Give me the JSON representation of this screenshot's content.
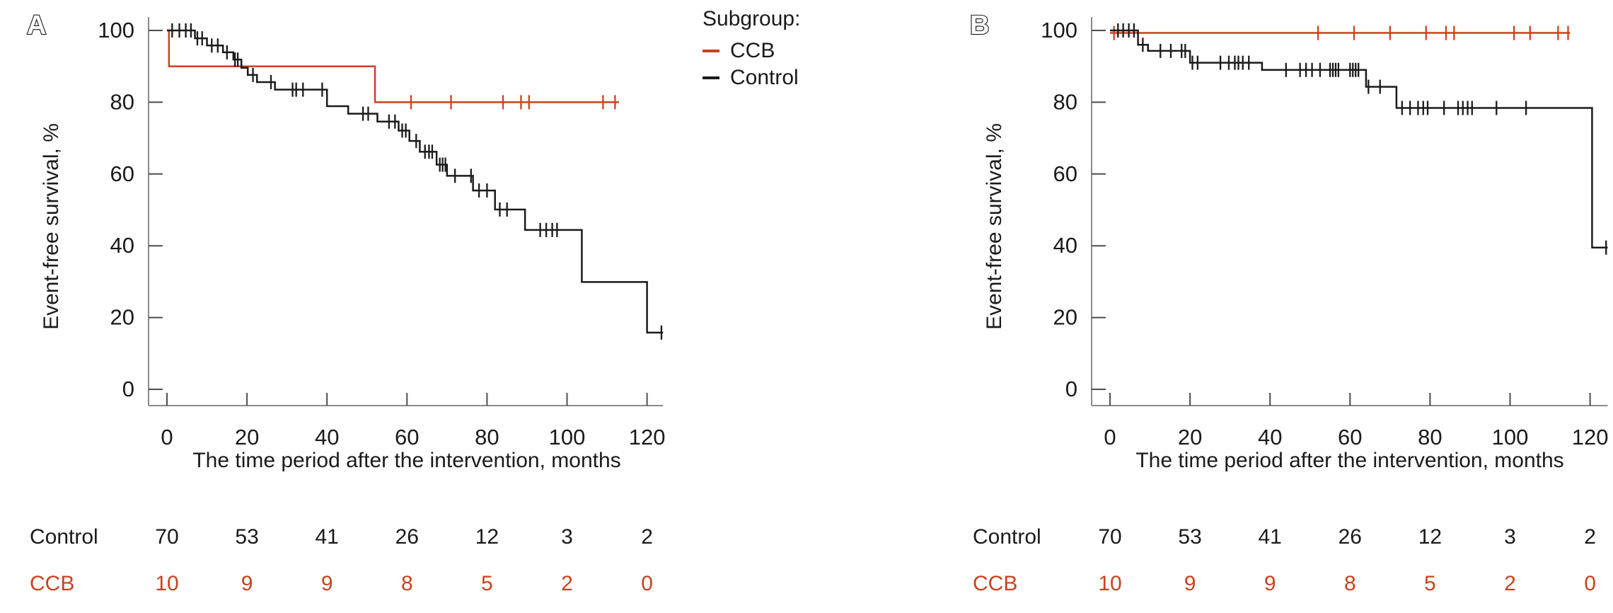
{
  "page": {
    "background": "#ffffff"
  },
  "colors": {
    "ccb": "#c8431f",
    "control": "#1a1a1a",
    "axis_line": "#8b8b8b",
    "tick_mark": "#4d4d4d",
    "text": "#1a1a1a"
  },
  "legend": {
    "title": "Subgroup:",
    "entries": [
      {
        "label": "CCB",
        "color": "#c8431f"
      },
      {
        "label": "Control",
        "color": "#1a1a1a"
      }
    ]
  },
  "chart_data": [
    {
      "type": "line",
      "subtype": "kaplan-meier-step",
      "panel": "A",
      "xlabel": "The time period after the intervention, months",
      "ylabel": "Event-free survival, %",
      "xlim": [
        0,
        124
      ],
      "ylim": [
        0,
        100
      ],
      "xticks": [
        0,
        20,
        40,
        60,
        80,
        100,
        120
      ],
      "yticks": [
        0,
        20,
        40,
        60,
        80,
        100
      ],
      "grid": false,
      "series": [
        {
          "name": "CCB",
          "color": "#c8431f",
          "end_t": 113,
          "steps": [
            [
              0,
              100
            ],
            [
              0.5,
              90
            ],
            [
              52,
              80
            ]
          ],
          "censors": [
            [
              61,
              80
            ],
            [
              71,
              80
            ],
            [
              84,
              80
            ],
            [
              88.5,
              80
            ],
            [
              90.5,
              80
            ],
            [
              109,
              80
            ],
            [
              112,
              80
            ]
          ]
        },
        {
          "name": "Control",
          "color": "#1a1a1a",
          "end_t": 124,
          "steps": [
            [
              0,
              100
            ],
            [
              7,
              97.8
            ],
            [
              10,
              95.8
            ],
            [
              14,
              93.9
            ],
            [
              16.6,
              91.9
            ],
            [
              18.6,
              89.6
            ],
            [
              20.2,
              87.6
            ],
            [
              22.5,
              85.6
            ],
            [
              27,
              83.5
            ],
            [
              40,
              78.9
            ],
            [
              45.3,
              76.8
            ],
            [
              52.6,
              74.6
            ],
            [
              57.9,
              72.1
            ],
            [
              60.6,
              69.2
            ],
            [
              63.2,
              66.2
            ],
            [
              67.4,
              62.6
            ],
            [
              70,
              59.5
            ],
            [
              76.5,
              55.4
            ],
            [
              82,
              50.1
            ],
            [
              89.5,
              44.4
            ],
            [
              103.7,
              29.9
            ],
            [
              120,
              15.8
            ]
          ],
          "censors": [
            [
              1.3,
              100
            ],
            [
              3.1,
              100
            ],
            [
              4.7,
              100
            ],
            [
              6,
              100
            ],
            [
              7.6,
              97.8
            ],
            [
              8.8,
              97.8
            ],
            [
              11.2,
              95.8
            ],
            [
              12.7,
              95.8
            ],
            [
              15,
              93.9
            ],
            [
              17,
              91.9
            ],
            [
              17.7,
              91.9
            ],
            [
              21.5,
              87.6
            ],
            [
              26,
              85.6
            ],
            [
              31.4,
              83.5
            ],
            [
              32.3,
              83.5
            ],
            [
              34,
              83.5
            ],
            [
              38.8,
              83.5
            ],
            [
              49,
              76.8
            ],
            [
              50.3,
              76.8
            ],
            [
              55.5,
              74.6
            ],
            [
              57,
              74.6
            ],
            [
              58.8,
              72.1
            ],
            [
              59.7,
              72.1
            ],
            [
              62.3,
              69.2
            ],
            [
              64.5,
              66.2
            ],
            [
              65.5,
              66.2
            ],
            [
              66.3,
              66.2
            ],
            [
              68.2,
              62.6
            ],
            [
              68.9,
              62.6
            ],
            [
              69.6,
              62.6
            ],
            [
              72,
              59.5
            ],
            [
              76,
              59.5
            ],
            [
              78,
              55.4
            ],
            [
              80,
              55.4
            ],
            [
              83.2,
              50.1
            ],
            [
              85,
              50.1
            ],
            [
              93.3,
              44.4
            ],
            [
              94.8,
              44.4
            ],
            [
              96.3,
              44.4
            ],
            [
              97.5,
              44.4
            ],
            [
              123.6,
              15.8
            ]
          ]
        }
      ],
      "risk_table": {
        "times": [
          0,
          20,
          40,
          60,
          80,
          100,
          120
        ],
        "rows": [
          {
            "label": "Control",
            "color": "#1a1a1a",
            "counts": [
              70,
              53,
              41,
              26,
              12,
              3,
              2
            ]
          },
          {
            "label": "CCB",
            "color": "#c8431f",
            "counts": [
              10,
              9,
              9,
              8,
              5,
              2,
              0
            ]
          }
        ]
      }
    },
    {
      "type": "line",
      "subtype": "kaplan-meier-step",
      "panel": "B",
      "xlabel": "The time period after the intervention, months",
      "ylabel": "Event-free survival, %",
      "xlim": [
        0,
        124.4
      ],
      "ylim": [
        0,
        100
      ],
      "xticks": [
        0,
        20,
        40,
        60,
        80,
        100,
        120
      ],
      "yticks": [
        0,
        20,
        40,
        60,
        80,
        100
      ],
      "grid": false,
      "series": [
        {
          "name": "CCB",
          "color": "#c8431f",
          "end_t": 115,
          "steps": [
            [
              0,
              99.3
            ]
          ],
          "censors": [
            [
              1,
              99.3
            ],
            [
              52,
              99.3
            ],
            [
              61,
              99.3
            ],
            [
              70,
              99.3
            ],
            [
              79,
              99.3
            ],
            [
              84,
              99.3
            ],
            [
              86,
              99.3
            ],
            [
              101,
              99.3
            ],
            [
              105,
              99.3
            ],
            [
              112,
              99.3
            ],
            [
              114.5,
              99.3
            ]
          ]
        },
        {
          "name": "Control",
          "color": "#1a1a1a",
          "end_t": 124.4,
          "steps": [
            [
              0,
              100
            ],
            [
              7,
              96
            ],
            [
              9.5,
              94.3
            ],
            [
              20,
              91
            ],
            [
              38,
              89
            ],
            [
              64,
              84.3
            ],
            [
              71.6,
              78.4
            ],
            [
              120.5,
              39.5
            ]
          ],
          "censors": [
            [
              2,
              100
            ],
            [
              3.3,
              100
            ],
            [
              4.7,
              100
            ],
            [
              6,
              100
            ],
            [
              8.2,
              96
            ],
            [
              12.6,
              94.3
            ],
            [
              15.2,
              94.3
            ],
            [
              17.9,
              94.3
            ],
            [
              18.8,
              94.3
            ],
            [
              20.6,
              91
            ],
            [
              21.9,
              91
            ],
            [
              27.6,
              91
            ],
            [
              29.7,
              91
            ],
            [
              31.2,
              91
            ],
            [
              32.1,
              91
            ],
            [
              33.2,
              91
            ],
            [
              34.7,
              91
            ],
            [
              44,
              89
            ],
            [
              47.5,
              89
            ],
            [
              49,
              89
            ],
            [
              50.5,
              89
            ],
            [
              52.5,
              89
            ],
            [
              55,
              89
            ],
            [
              55.7,
              89
            ],
            [
              56.4,
              89
            ],
            [
              57.1,
              89
            ],
            [
              60,
              89
            ],
            [
              60.7,
              89
            ],
            [
              61.4,
              89
            ],
            [
              62.1,
              89
            ],
            [
              64.6,
              84.3
            ],
            [
              67.5,
              84.3
            ],
            [
              73,
              78.4
            ],
            [
              75,
              78.4
            ],
            [
              77,
              78.4
            ],
            [
              78.3,
              78.4
            ],
            [
              79.4,
              78.4
            ],
            [
              83.5,
              78.4
            ],
            [
              87,
              78.4
            ],
            [
              88.2,
              78.4
            ],
            [
              89.4,
              78.4
            ],
            [
              90.5,
              78.4
            ],
            [
              96.6,
              78.4
            ],
            [
              104,
              78.4
            ],
            [
              124,
              39.5
            ]
          ]
        }
      ],
      "risk_table": {
        "times": [
          0,
          20,
          40,
          60,
          80,
          100,
          120
        ],
        "rows": [
          {
            "label": "Control",
            "color": "#1a1a1a",
            "counts": [
              70,
              53,
              41,
              26,
              12,
              3,
              2
            ]
          },
          {
            "label": "CCB",
            "color": "#c8431f",
            "counts": [
              10,
              9,
              9,
              8,
              5,
              2,
              0
            ]
          }
        ]
      }
    }
  ]
}
